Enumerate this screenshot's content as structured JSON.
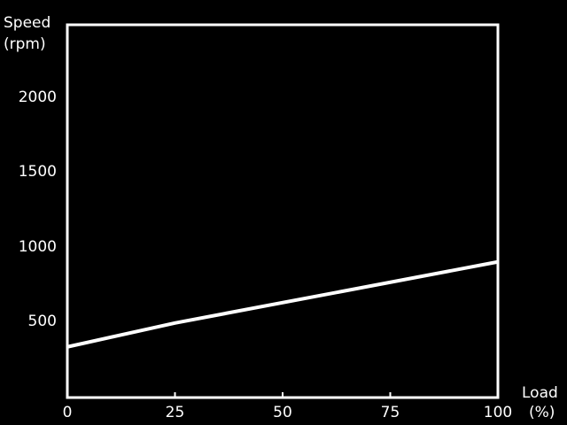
{
  "chart_data": {
    "type": "line",
    "title": "",
    "ylabel_line1": "Speed",
    "ylabel_line2": "(rpm)",
    "xlabel_line1": "Load",
    "xlabel_line2": "(%)",
    "xlim": [
      0,
      100
    ],
    "ylim": [
      0,
      2500
    ],
    "xticks": [
      "0",
      "25",
      "50",
      "75",
      "100"
    ],
    "yticks": [
      "500",
      "1000",
      "1500",
      "2000"
    ],
    "grid": "horizontal",
    "series": [
      {
        "x": [
          0,
          25,
          100
        ],
        "y": [
          340,
          500,
          910
        ]
      }
    ],
    "colors": {
      "background": "#000000",
      "line": "#ffffff",
      "grid": "#555555"
    }
  }
}
